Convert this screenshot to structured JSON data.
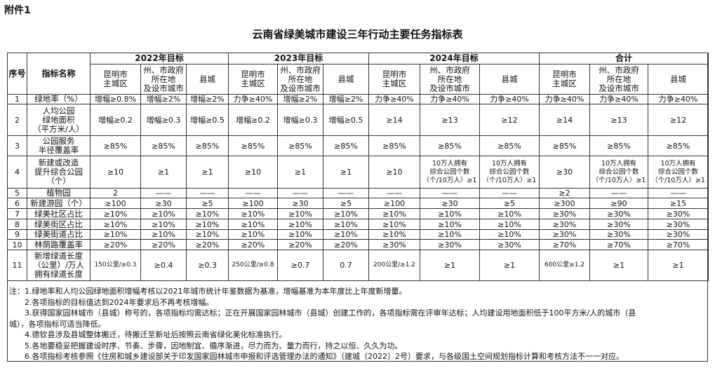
{
  "attachment": "附件1",
  "title": "云南省绿美城市建设三年行动主要任务指标表",
  "header": {
    "seq": "序号",
    "name": "指标名称",
    "groups": [
      "2022年目标",
      "2023年目标",
      "2024年目标",
      "合计"
    ],
    "subcols": [
      "昆明市\n主城区",
      "州、市政府\n所在地\n及设市城市",
      "县城"
    ]
  },
  "rows": [
    {
      "seq": "1",
      "name": "绿地率（%）",
      "values": [
        "增幅≥0.8%",
        "增幅≥2%",
        "增幅≥2%",
        "力争≥40%",
        "增幅≥2%",
        "增幅≥2%",
        "力争≥40%",
        "力争≥40%",
        "力争≥40%",
        "力争≥40%",
        "力争≥40%",
        "力争≥40%"
      ]
    },
    {
      "seq": "2",
      "name": "人均公园\n绿地面积\n（平方米/人）",
      "values": [
        "增幅≥0.2",
        "增幅≥0.3",
        "增幅≥0.5",
        "增幅≥0.2",
        "增幅≥0.3",
        "增幅≥0.5",
        "≥14",
        "≥13",
        "≥12",
        "≥14",
        "≥13",
        "≥12"
      ]
    },
    {
      "seq": "3",
      "name": "公园服务\n半径覆盖率",
      "values": [
        "≥85%",
        "≥85%",
        "≥85%",
        "≥85%",
        "≥85%",
        "≥85%",
        "≥85%",
        "≥85%",
        "≥85%",
        "≥85%",
        "≥85%",
        "≥85%"
      ]
    },
    {
      "seq": "4",
      "name": "新建或改造\n提升综合公园\n（个）",
      "values": [
        "≥10",
        "≥1",
        "≥1",
        "≥10",
        "≥1",
        "≥1",
        "≥10",
        "10万人拥有\n综合公园个数\n（个/10万人）≥1",
        "10万人拥有\n综合公园个数\n（个/10万人）≥1",
        "≥30",
        "10万人拥有\n综合公园个数\n（个/10万人）≥1",
        "10万人拥有\n综合公园个数\n（个/10万人）≥1"
      ]
    },
    {
      "seq": "5",
      "name": "植物园",
      "values": [
        "2",
        "——",
        "——",
        "——",
        "——",
        "——",
        "——",
        "——",
        "——",
        "≥2",
        "——",
        "——"
      ]
    },
    {
      "seq": "6",
      "name": "新建游园（个）",
      "values": [
        "≥100",
        "≥30",
        "≥5",
        "≥100",
        "≥30",
        "≥5",
        "≥100",
        "≥30",
        "≥5",
        "≥300",
        "≥90",
        "≥15"
      ]
    },
    {
      "seq": "7",
      "name": "绿美社区占比",
      "values": [
        "≥10%",
        "≥10%",
        "≥10%",
        "≥10%",
        "≥10%",
        "≥10%",
        "≥10%",
        "≥10%",
        "≥10%",
        "≥30%",
        "≥30%",
        "≥30%"
      ]
    },
    {
      "seq": "8",
      "name": "绿美街区占比",
      "values": [
        "≥10%",
        "≥10%",
        "≥10%",
        "≥10%",
        "≥10%",
        "≥10%",
        "≥10%",
        "≥10%",
        "≥10%",
        "≥30%",
        "≥30%",
        "≥30%"
      ]
    },
    {
      "seq": "9",
      "name": "绿美街道占比",
      "values": [
        "≥10%",
        "≥10%",
        "≥10%",
        "≥10%",
        "≥10%",
        "≥10%",
        "≥10%",
        "≥10%",
        "≥10%",
        "≥30%",
        "≥30%",
        "≥30%"
      ]
    },
    {
      "seq": "10",
      "name": "林荫路覆盖率",
      "values": [
        "≥20%",
        "≥20%",
        "≥20%",
        "≥20%",
        "≥20%",
        "≥20%",
        "≥30%",
        "≥30%",
        "≥30%",
        "≥70%",
        "≥70%",
        "≥70%"
      ]
    },
    {
      "seq": "11",
      "name": "新增绿道长度\n（公里）/万人\n拥有绿道长度",
      "values": [
        "150公里/≥0.3",
        "≥0.4",
        "≥0.3",
        "250公里/≥0.8",
        "≥0.7",
        "0.7",
        "200公里/≥1.2",
        "≥1",
        "≥1",
        "600公里≥1.2",
        "≥1",
        "≥1"
      ]
    }
  ],
  "notes": [
    "注：1.绿地率和人均公园绿地面积增幅考核以2021年城市统计年鉴数据为基准，增幅基准为本年度比上年度新增量。",
    "2.各项指标的目标值达到2024年要求后不再考核增幅。",
    "3.获得国家园林城市（县城）称号的，各项指标均需达标；正在开展国家园林城市（县城）创建工作的，各项指标需在评审年达标；人均建设用地面积低于100平方米/人的城市（县",
    "城），各项指标可适当降低。",
    "4.德钦县涉及县城整体搬迁，待搬迁至新址后按照云南省绿化美化标准执行。",
    "5.各地要稳妥把握建设时序、节奏、步骤，因地制宜、循序渐进，尽力而为、量力而行，持之以恒、久久为功。",
    "6.各项指标考核参照《住房和城乡建设部关于印发国家园林城市申报和评选管理办法的通知》（建城〔2022〕2号）要求，与各级国土空间规划指标计算和考核方法不一一对应。"
  ]
}
